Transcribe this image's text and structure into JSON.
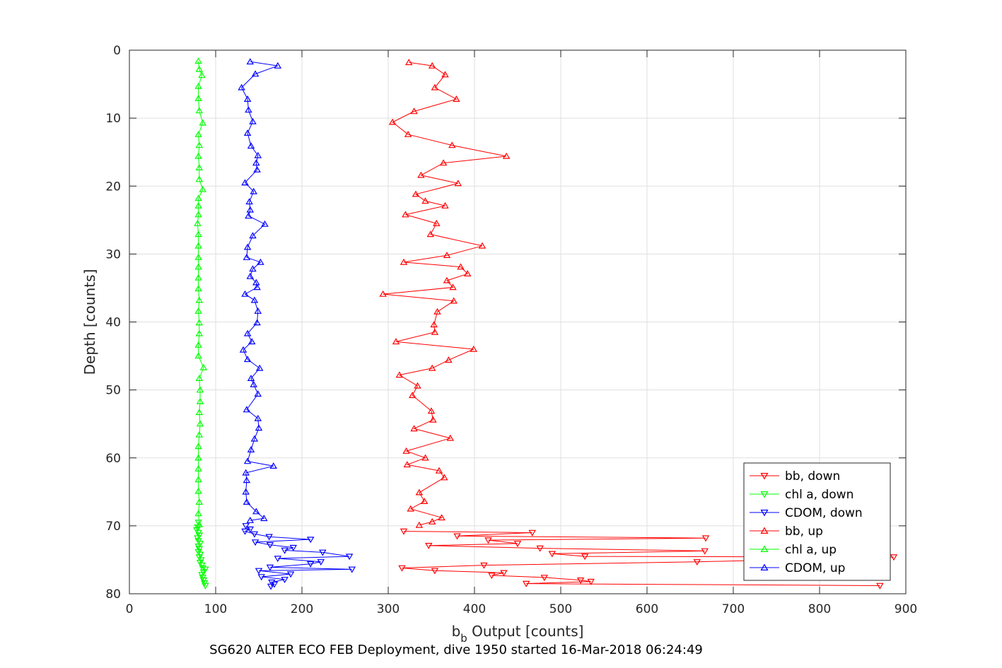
{
  "chart_data": {
    "type": "scatter",
    "title": "",
    "xlabel": "b",
    "xlabel_sub": "b",
    "xlabel_suffix": " Output [counts]",
    "ylabel": "Depth [counts]",
    "caption": "SG620 ALTER ECO FEB Deployment, dive 1950 started 16-Mar-2018 06:24:49",
    "xlim": [
      0,
      900
    ],
    "ylim": [
      0,
      80
    ],
    "y_reversed": true,
    "grid": true,
    "legend_position": "bottom-right",
    "xticks": [
      "0",
      "100",
      "200",
      "300",
      "400",
      "500",
      "600",
      "700",
      "800",
      "900"
    ],
    "yticks": [
      "0",
      "10",
      "20",
      "30",
      "40",
      "50",
      "60",
      "70",
      "80"
    ],
    "series": [
      {
        "name": "bb, down",
        "color": "#ff0000",
        "marker": "triangle-down",
        "points": [
          [
            318,
            70.8
          ],
          [
            467,
            71.0
          ],
          [
            380,
            71.5
          ],
          [
            668,
            71.8
          ],
          [
            416,
            72.1
          ],
          [
            450,
            72.6
          ],
          [
            347,
            72.9
          ],
          [
            476,
            73.3
          ],
          [
            667,
            73.7
          ],
          [
            490,
            74.1
          ],
          [
            528,
            74.5
          ],
          [
            886,
            74.6
          ],
          [
            658,
            75.3
          ],
          [
            411,
            75.8
          ],
          [
            316,
            76.2
          ],
          [
            354,
            76.6
          ],
          [
            434,
            76.9
          ],
          [
            420,
            77.3
          ],
          [
            481,
            77.6
          ],
          [
            523,
            78.0
          ],
          [
            535,
            78.2
          ],
          [
            460,
            78.5
          ],
          [
            870,
            78.8
          ]
        ]
      },
      {
        "name": "chl a, down",
        "color": "#00ff00",
        "marker": "triangle-down",
        "points": [
          [
            80,
            69.5
          ],
          [
            79,
            70.2
          ],
          [
            78,
            70.6
          ],
          [
            80,
            71.0
          ],
          [
            81,
            71.4
          ],
          [
            79,
            71.8
          ],
          [
            80,
            72.2
          ],
          [
            82,
            72.6
          ],
          [
            80,
            73.0
          ],
          [
            81,
            73.4
          ],
          [
            80,
            73.8
          ],
          [
            82,
            74.2
          ],
          [
            81,
            74.6
          ],
          [
            83,
            75.0
          ],
          [
            82,
            75.4
          ],
          [
            84,
            75.8
          ],
          [
            85,
            76.2
          ],
          [
            88,
            76.4
          ],
          [
            86,
            76.8
          ],
          [
            84,
            77.2
          ],
          [
            85,
            77.6
          ],
          [
            86,
            78.0
          ],
          [
            87,
            78.4
          ],
          [
            88,
            78.8
          ]
        ]
      },
      {
        "name": "CDOM, down",
        "color": "#0000ff",
        "marker": "triangle-down",
        "points": [
          [
            135,
            70.0
          ],
          [
            140,
            70.5
          ],
          [
            134,
            70.8
          ],
          [
            145,
            71.2
          ],
          [
            162,
            71.6
          ],
          [
            210,
            72.0
          ],
          [
            146,
            72.4
          ],
          [
            163,
            72.8
          ],
          [
            190,
            73.2
          ],
          [
            180,
            73.6
          ],
          [
            224,
            73.9
          ],
          [
            255,
            74.5
          ],
          [
            172,
            74.8
          ],
          [
            222,
            75.3
          ],
          [
            210,
            75.6
          ],
          [
            163,
            76.1
          ],
          [
            258,
            76.4
          ],
          [
            150,
            76.6
          ],
          [
            187,
            77.1
          ],
          [
            153,
            77.5
          ],
          [
            180,
            77.9
          ],
          [
            165,
            78.3
          ],
          [
            168,
            78.6
          ],
          [
            164,
            78.9
          ]
        ]
      },
      {
        "name": "bb, up",
        "color": "#ff0000",
        "marker": "triangle-up",
        "points": [
          [
            324,
            1.8
          ],
          [
            351,
            2.3
          ],
          [
            366,
            3.6
          ],
          [
            354,
            5.5
          ],
          [
            379,
            7.2
          ],
          [
            330,
            9.0
          ],
          [
            305,
            10.6
          ],
          [
            323,
            12.4
          ],
          [
            374,
            14.0
          ],
          [
            437,
            15.6
          ],
          [
            364,
            16.6
          ],
          [
            338,
            18.4
          ],
          [
            381,
            19.6
          ],
          [
            332,
            21.2
          ],
          [
            343,
            22.2
          ],
          [
            366,
            22.9
          ],
          [
            320,
            24.2
          ],
          [
            356,
            25.5
          ],
          [
            349,
            27.1
          ],
          [
            409,
            28.8
          ],
          [
            368,
            30.2
          ],
          [
            318,
            31.2
          ],
          [
            384,
            31.9
          ],
          [
            392,
            32.9
          ],
          [
            368,
            33.9
          ],
          [
            375,
            34.9
          ],
          [
            294,
            35.9
          ],
          [
            376,
            36.9
          ],
          [
            357,
            38.5
          ],
          [
            353,
            40.4
          ],
          [
            354,
            41.5
          ],
          [
            309,
            42.9
          ],
          [
            399,
            44.0
          ],
          [
            370,
            45.6
          ],
          [
            351,
            46.8
          ],
          [
            313,
            47.8
          ],
          [
            334,
            49.4
          ],
          [
            328,
            50.8
          ],
          [
            350,
            53.1
          ],
          [
            352,
            54.4
          ],
          [
            330,
            55.7
          ],
          [
            372,
            57.1
          ],
          [
            321,
            59.0
          ],
          [
            343,
            60.0
          ],
          [
            322,
            61.0
          ],
          [
            359,
            61.9
          ],
          [
            365,
            62.9
          ],
          [
            336,
            65.1
          ],
          [
            342,
            66.4
          ],
          [
            326,
            67.5
          ],
          [
            362,
            68.8
          ],
          [
            351,
            69.4
          ],
          [
            336,
            69.9
          ]
        ]
      },
      {
        "name": "chl a, up",
        "color": "#00ff00",
        "marker": "triangle-up",
        "points": [
          [
            80,
            1.6
          ],
          [
            81,
            2.8
          ],
          [
            84,
            3.7
          ],
          [
            80,
            5.3
          ],
          [
            80,
            7.1
          ],
          [
            81,
            8.9
          ],
          [
            85,
            10.7
          ],
          [
            80,
            12.4
          ],
          [
            81,
            14.0
          ],
          [
            80,
            15.6
          ],
          [
            81,
            17.3
          ],
          [
            81,
            19.0
          ],
          [
            85,
            20.5
          ],
          [
            80,
            21.8
          ],
          [
            80,
            22.9
          ],
          [
            80,
            24.2
          ],
          [
            79,
            25.5
          ],
          [
            80,
            27.1
          ],
          [
            80,
            28.8
          ],
          [
            80,
            30.5
          ],
          [
            80,
            31.9
          ],
          [
            80,
            33.5
          ],
          [
            80,
            35.1
          ],
          [
            81,
            36.8
          ],
          [
            80,
            38.4
          ],
          [
            81,
            40.1
          ],
          [
            81,
            41.7
          ],
          [
            80,
            43.4
          ],
          [
            80,
            45.0
          ],
          [
            86,
            46.7
          ],
          [
            81,
            48.3
          ],
          [
            82,
            50.0
          ],
          [
            82,
            51.7
          ],
          [
            81,
            53.3
          ],
          [
            82,
            55.0
          ],
          [
            81,
            56.6
          ],
          [
            80,
            58.3
          ],
          [
            80,
            60.0
          ],
          [
            80,
            61.6
          ],
          [
            80,
            63.2
          ],
          [
            80,
            64.9
          ],
          [
            81,
            66.5
          ],
          [
            80,
            68.2
          ],
          [
            81,
            69.8
          ]
        ]
      },
      {
        "name": "CDOM, up",
        "color": "#0000ff",
        "marker": "triangle-up",
        "points": [
          [
            140,
            1.7
          ],
          [
            172,
            2.3
          ],
          [
            146,
            3.5
          ],
          [
            130,
            5.5
          ],
          [
            137,
            7.2
          ],
          [
            138,
            8.8
          ],
          [
            143,
            10.5
          ],
          [
            137,
            12.2
          ],
          [
            141,
            14.1
          ],
          [
            149,
            15.5
          ],
          [
            147,
            16.6
          ],
          [
            148,
            17.6
          ],
          [
            134,
            19.5
          ],
          [
            144,
            20.8
          ],
          [
            139,
            22.3
          ],
          [
            140,
            23.5
          ],
          [
            138,
            24.4
          ],
          [
            157,
            25.6
          ],
          [
            143,
            27.3
          ],
          [
            137,
            29.0
          ],
          [
            136,
            30.5
          ],
          [
            152,
            31.2
          ],
          [
            143,
            32.2
          ],
          [
            140,
            33.3
          ],
          [
            147,
            34.2
          ],
          [
            148,
            34.9
          ],
          [
            134,
            35.9
          ],
          [
            145,
            36.8
          ],
          [
            149,
            38.4
          ],
          [
            148,
            40.1
          ],
          [
            137,
            41.7
          ],
          [
            142,
            42.9
          ],
          [
            132,
            44.1
          ],
          [
            137,
            45.5
          ],
          [
            151,
            46.8
          ],
          [
            141,
            48.3
          ],
          [
            144,
            49.2
          ],
          [
            149,
            50.6
          ],
          [
            136,
            52.9
          ],
          [
            149,
            54.2
          ],
          [
            150,
            55.6
          ],
          [
            145,
            57.2
          ],
          [
            141,
            58.8
          ],
          [
            137,
            60.5
          ],
          [
            167,
            61.2
          ],
          [
            135,
            62.2
          ],
          [
            136,
            63.3
          ],
          [
            135,
            65.0
          ],
          [
            136,
            66.5
          ],
          [
            147,
            67.9
          ],
          [
            156,
            68.9
          ],
          [
            140,
            69.2
          ]
        ]
      }
    ]
  }
}
